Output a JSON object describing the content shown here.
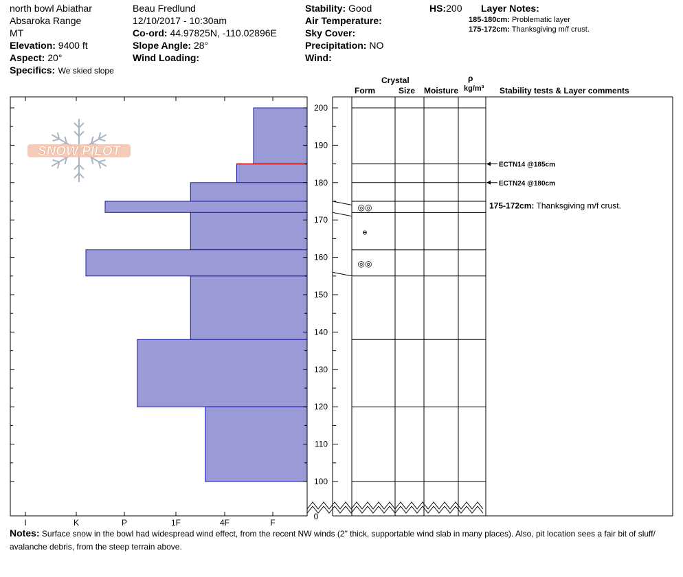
{
  "header": {
    "location": "north bowl Abiathar",
    "range": "Absaroka Range",
    "state": "MT",
    "elevation_label": "Elevation:",
    "elevation": "9400 ft",
    "aspect_label": "Aspect:",
    "aspect": "20°",
    "specifics_label": "Specifics:",
    "specifics": "We skied slope",
    "observer": "Beau  Fredlund",
    "datetime": "12/10/2017 - 10:30am",
    "coord_label": "Co-ord:",
    "coord": "44.97825N, -110.02896E",
    "slope_label": "Slope Angle:",
    "slope": "28°",
    "wind_loading_label": "Wind Loading:",
    "stability_label": "Stability:",
    "stability": "Good",
    "air_temp_label": "Air Temperature:",
    "sky_label": "Sky Cover:",
    "precip_label": "Precipitation:",
    "precip": "NO",
    "wind_label": "Wind:",
    "hs_label": "HS:",
    "hs": "200",
    "layer_notes_label": "Layer Notes:",
    "layer_notes": [
      {
        "range": "185-180cm:",
        "text": "Problematic layer"
      },
      {
        "range": "175-172cm:",
        "text": "Thanksgiving m/f crust."
      }
    ]
  },
  "logo": {
    "text": "SNOW PILOT"
  },
  "columns": {
    "crystal": "Crystal",
    "form": "Form",
    "size": "Size",
    "moisture": "Moisture",
    "rho": "ρ",
    "density_unit": "kg/m³",
    "stability": "Stability tests & Layer comments"
  },
  "chart_data": {
    "type": "bar",
    "orientation": "horizontal",
    "x_axis": {
      "ticks": [
        "I",
        "K",
        "P",
        "1F",
        "4F",
        "F"
      ],
      "direction": "reversed"
    },
    "y_axis": {
      "range": [
        100,
        200
      ],
      "ticks": [
        200,
        190,
        180,
        170,
        160,
        150,
        140,
        130,
        120,
        110,
        100
      ],
      "break_label": "0"
    },
    "hardness_scale": {
      "F": 1,
      "4F": 2,
      "1F": 3,
      "P": 4,
      "K": 5,
      "I": 6
    },
    "layers": [
      {
        "top": 200,
        "bottom": 185,
        "hardness": 1.4
      },
      {
        "top": 185,
        "bottom": 180,
        "hardness": 1.75
      },
      {
        "top": 180,
        "bottom": 175,
        "hardness": 2.7
      },
      {
        "top": 175,
        "bottom": 172,
        "hardness": 4.4
      },
      {
        "top": 172,
        "bottom": 162,
        "hardness": 2.7
      },
      {
        "top": 162,
        "bottom": 155,
        "hardness": 4.8
      },
      {
        "top": 155,
        "bottom": 138,
        "hardness": 2.7
      },
      {
        "top": 138,
        "bottom": 120,
        "hardness": 3.75
      },
      {
        "top": 120,
        "bottom": 100,
        "hardness": 2.4
      }
    ],
    "problem_layer_line": 185,
    "crystal_forms": [
      {
        "depth": 173.5,
        "symbol": "◎◎"
      },
      {
        "depth": 167,
        "symbol": "ɵ"
      },
      {
        "depth": 158.5,
        "symbol": "◎◎"
      }
    ],
    "stability_tests": [
      {
        "depth": 185,
        "label": "ECTN14 @185cm"
      },
      {
        "depth": 180,
        "label": "ECTN24 @180cm"
      }
    ],
    "layer_comments": [
      {
        "depth": 172,
        "range": "175-172cm:",
        "text": "Thanksgiving m/f crust."
      }
    ]
  },
  "notes": {
    "label": "Notes:",
    "text": "Surface snow in the bowl had widespread wind effect, from the recent NW winds (2\" thick, supportable wind slab in many places).  Also, pit location sees a fair bit of sluff/ avalanche debris, from the steep terrain above."
  }
}
